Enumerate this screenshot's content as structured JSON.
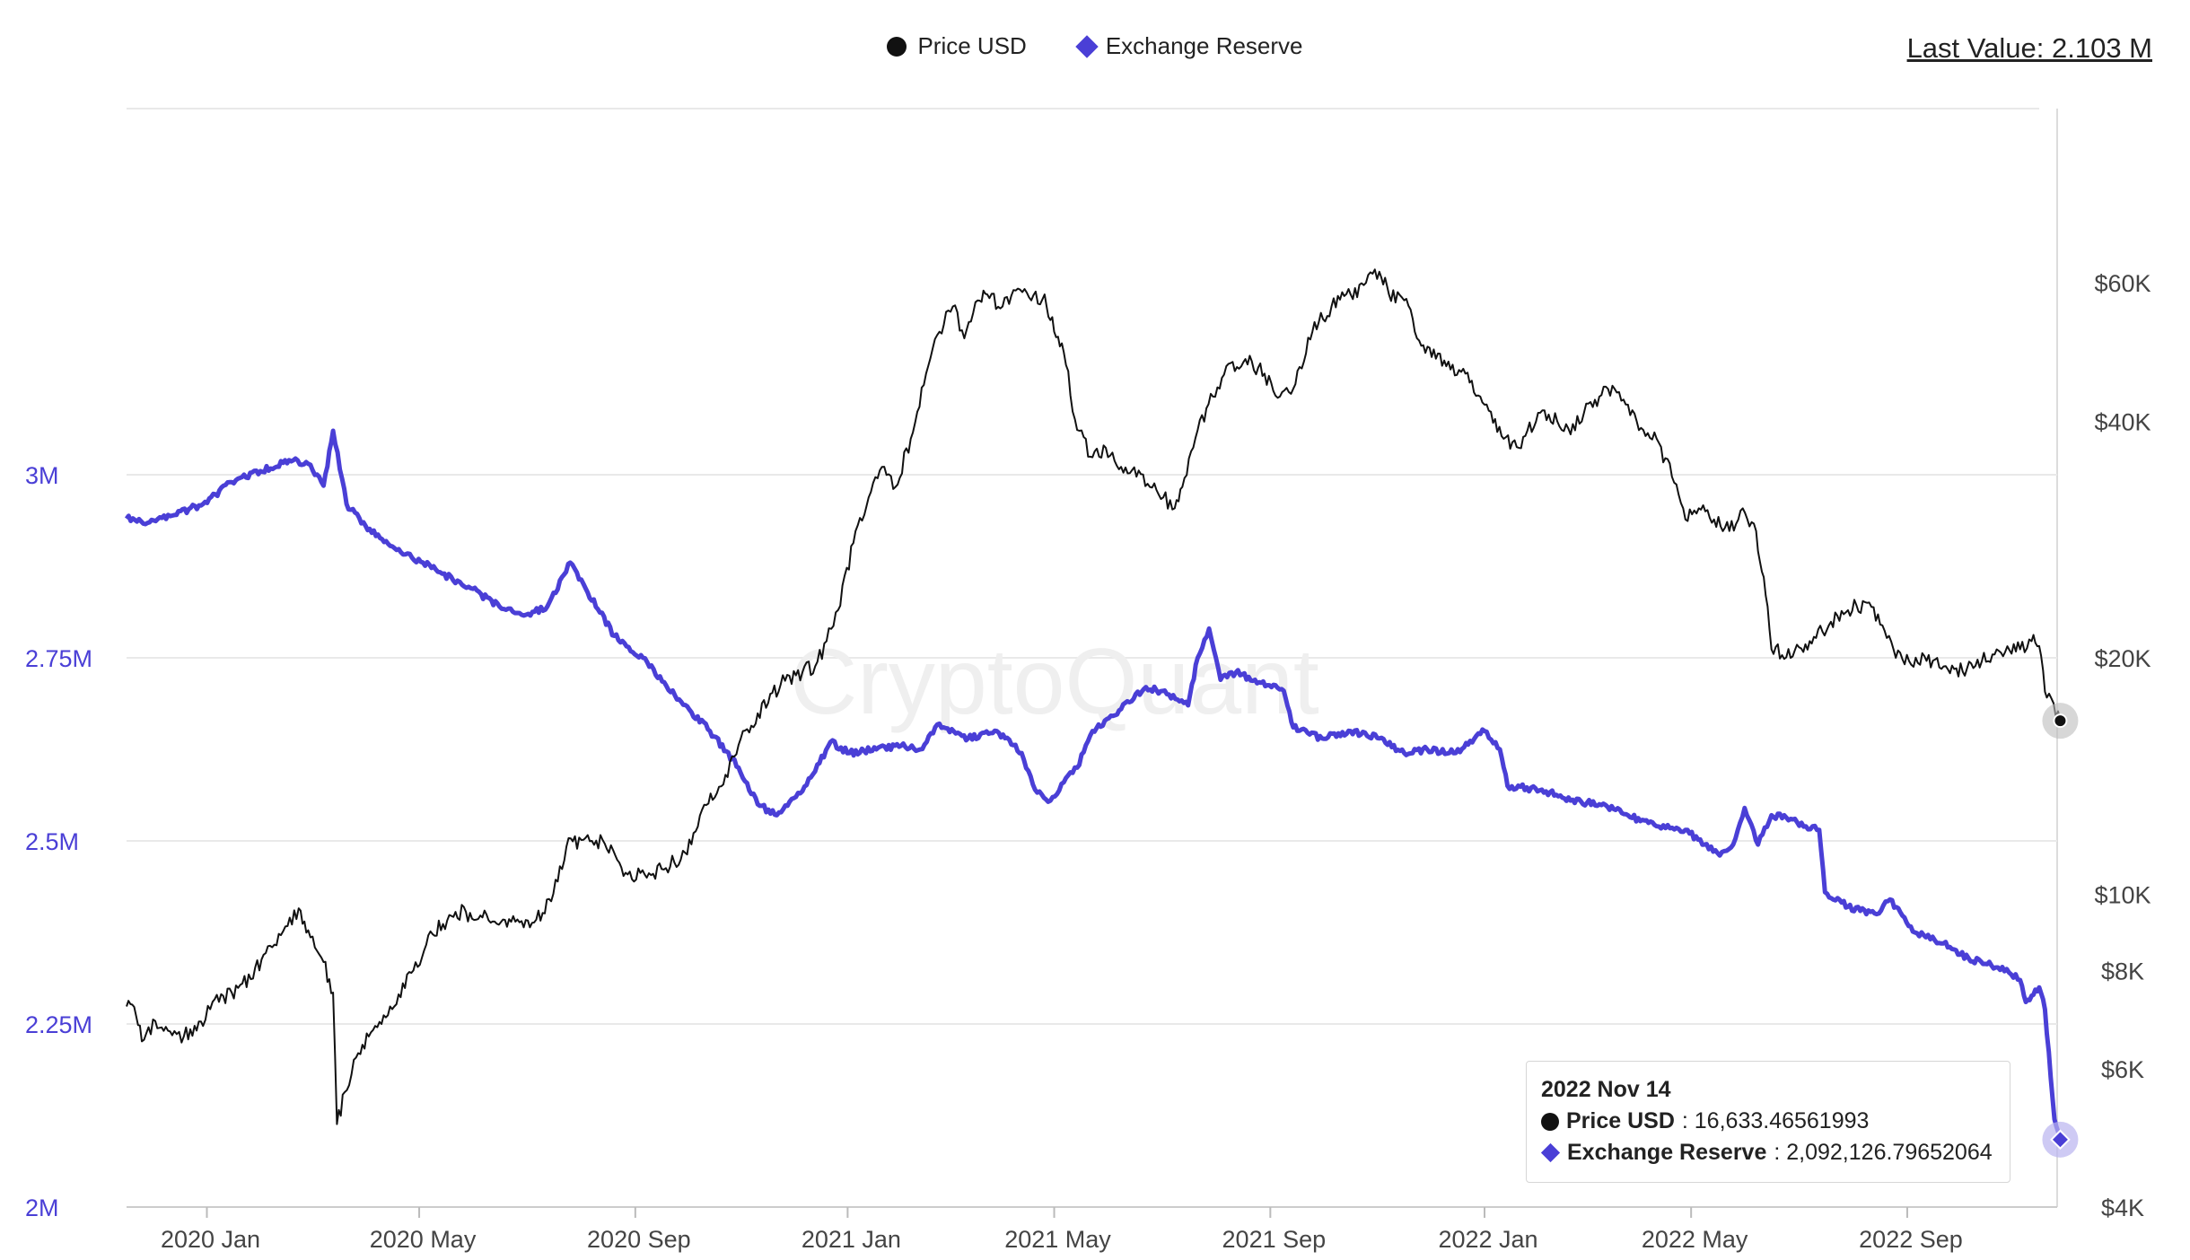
{
  "legend": {
    "items": [
      {
        "label": "Price USD",
        "marker": "circle-icon",
        "color": "#111111"
      },
      {
        "label": "Exchange Reserve",
        "marker": "diamond-icon",
        "color": "#4a3fd6"
      }
    ]
  },
  "last_value": "Last Value: 2.103 M",
  "watermark": "CryptoQuant",
  "tooltip": {
    "date": "2022 Nov 14",
    "price_label": "Price USD",
    "price_value": ": 16,633.46561993",
    "reserve_label": "Exchange Reserve",
    "reserve_value": ": 2,092,126.79652064"
  },
  "chart_data": {
    "type": "line",
    "x_ticks": [
      {
        "label": "2020 Jan",
        "t": 0.042
      },
      {
        "label": "2020 May",
        "t": 0.153
      },
      {
        "label": "2020 Sep",
        "t": 0.266
      },
      {
        "label": "2021 Jan",
        "t": 0.377
      },
      {
        "label": "2021 May",
        "t": 0.485
      },
      {
        "label": "2021 Sep",
        "t": 0.598
      },
      {
        "label": "2022 Jan",
        "t": 0.71
      },
      {
        "label": "2022 May",
        "t": 0.818
      },
      {
        "label": "2022 Sep",
        "t": 0.931
      }
    ],
    "left_axis": {
      "ylim": [
        2000000,
        3500000
      ],
      "color": "#4a3fd6",
      "ticks": [
        {
          "label": "3M",
          "v": 3000000
        },
        {
          "label": "2.75M",
          "v": 2750000
        },
        {
          "label": "2.5M",
          "v": 2500000
        },
        {
          "label": "2.25M",
          "v": 2250000
        },
        {
          "label": "2M",
          "v": 2000000
        }
      ]
    },
    "right_axis": {
      "scale": "log",
      "ylim": [
        4000,
        100000
      ],
      "color": "#444444",
      "ticks": [
        {
          "label": "$60K",
          "v": 60000
        },
        {
          "label": "$40K",
          "v": 40000
        },
        {
          "label": "$20K",
          "v": 20000
        },
        {
          "label": "$10K",
          "v": 10000
        },
        {
          "label": "$8K",
          "v": 8000
        },
        {
          "label": "$6K",
          "v": 6000
        },
        {
          "label": "$4K",
          "v": 4000
        }
      ]
    },
    "series": [
      {
        "name": "Exchange Reserve",
        "axis": "left",
        "color": "#4a3fd6",
        "points": [
          [
            0.0,
            2940000
          ],
          [
            0.012,
            2935000
          ],
          [
            0.025,
            2945000
          ],
          [
            0.04,
            2960000
          ],
          [
            0.055,
            2990000
          ],
          [
            0.07,
            3005000
          ],
          [
            0.085,
            3020000
          ],
          [
            0.095,
            3015000
          ],
          [
            0.103,
            2985000
          ],
          [
            0.108,
            3060000
          ],
          [
            0.115,
            2960000
          ],
          [
            0.125,
            2930000
          ],
          [
            0.14,
            2900000
          ],
          [
            0.155,
            2880000
          ],
          [
            0.165,
            2865000
          ],
          [
            0.18,
            2845000
          ],
          [
            0.195,
            2820000
          ],
          [
            0.21,
            2810000
          ],
          [
            0.22,
            2820000
          ],
          [
            0.232,
            2880000
          ],
          [
            0.24,
            2845000
          ],
          [
            0.255,
            2780000
          ],
          [
            0.27,
            2750000
          ],
          [
            0.29,
            2690000
          ],
          [
            0.305,
            2650000
          ],
          [
            0.32,
            2600000
          ],
          [
            0.33,
            2550000
          ],
          [
            0.34,
            2535000
          ],
          [
            0.35,
            2560000
          ],
          [
            0.36,
            2595000
          ],
          [
            0.368,
            2635000
          ],
          [
            0.378,
            2620000
          ],
          [
            0.392,
            2625000
          ],
          [
            0.405,
            2630000
          ],
          [
            0.415,
            2625000
          ],
          [
            0.425,
            2660000
          ],
          [
            0.44,
            2640000
          ],
          [
            0.455,
            2650000
          ],
          [
            0.468,
            2620000
          ],
          [
            0.475,
            2570000
          ],
          [
            0.483,
            2555000
          ],
          [
            0.49,
            2580000
          ],
          [
            0.497,
            2600000
          ],
          [
            0.505,
            2650000
          ],
          [
            0.52,
            2680000
          ],
          [
            0.533,
            2710000
          ],
          [
            0.545,
            2700000
          ],
          [
            0.555,
            2685000
          ],
          [
            0.56,
            2750000
          ],
          [
            0.566,
            2790000
          ],
          [
            0.572,
            2720000
          ],
          [
            0.58,
            2730000
          ],
          [
            0.59,
            2720000
          ],
          [
            0.605,
            2705000
          ],
          [
            0.61,
            2655000
          ],
          [
            0.625,
            2640000
          ],
          [
            0.64,
            2650000
          ],
          [
            0.655,
            2640000
          ],
          [
            0.668,
            2620000
          ],
          [
            0.68,
            2625000
          ],
          [
            0.695,
            2620000
          ],
          [
            0.71,
            2650000
          ],
          [
            0.718,
            2625000
          ],
          [
            0.722,
            2575000
          ],
          [
            0.74,
            2570000
          ],
          [
            0.755,
            2555000
          ],
          [
            0.77,
            2550000
          ],
          [
            0.785,
            2535000
          ],
          [
            0.8,
            2520000
          ],
          [
            0.815,
            2515000
          ],
          [
            0.825,
            2495000
          ],
          [
            0.833,
            2480000
          ],
          [
            0.84,
            2495000
          ],
          [
            0.846,
            2545000
          ],
          [
            0.853,
            2495000
          ],
          [
            0.86,
            2535000
          ],
          [
            0.87,
            2530000
          ],
          [
            0.878,
            2520000
          ],
          [
            0.885,
            2515000
          ],
          [
            0.888,
            2430000
          ],
          [
            0.9,
            2410000
          ],
          [
            0.915,
            2400000
          ],
          [
            0.922,
            2420000
          ],
          [
            0.935,
            2375000
          ],
          [
            0.95,
            2360000
          ],
          [
            0.963,
            2340000
          ],
          [
            0.975,
            2330000
          ],
          [
            0.983,
            2325000
          ],
          [
            0.99,
            2310000
          ],
          [
            0.993,
            2280000
          ],
          [
            0.997,
            2290000
          ],
          [
            1.0,
            2300000
          ],
          [
            1.003,
            2270000
          ],
          [
            1.008,
            2120000
          ],
          [
            1.011,
            2092126
          ]
        ]
      },
      {
        "name": "Price USD",
        "axis": "right",
        "color": "#111111",
        "points": [
          [
            0.0,
            7200
          ],
          [
            0.005,
            7000
          ],
          [
            0.008,
            6500
          ],
          [
            0.015,
            6900
          ],
          [
            0.025,
            6700
          ],
          [
            0.03,
            6600
          ],
          [
            0.04,
            6800
          ],
          [
            0.045,
            7300
          ],
          [
            0.055,
            7500
          ],
          [
            0.065,
            7800
          ],
          [
            0.075,
            8600
          ],
          [
            0.083,
            9100
          ],
          [
            0.09,
            9600
          ],
          [
            0.095,
            9000
          ],
          [
            0.103,
            8200
          ],
          [
            0.108,
            7500
          ],
          [
            0.11,
            5100
          ],
          [
            0.114,
            5600
          ],
          [
            0.12,
            6200
          ],
          [
            0.13,
            6800
          ],
          [
            0.14,
            7200
          ],
          [
            0.15,
            8000
          ],
          [
            0.16,
            8900
          ],
          [
            0.172,
            9500
          ],
          [
            0.185,
            9400
          ],
          [
            0.2,
            9300
          ],
          [
            0.212,
            9200
          ],
          [
            0.222,
            9800
          ],
          [
            0.23,
            11500
          ],
          [
            0.24,
            11800
          ],
          [
            0.25,
            11600
          ],
          [
            0.262,
            10600
          ],
          [
            0.272,
            10500
          ],
          [
            0.282,
            10800
          ],
          [
            0.292,
            11300
          ],
          [
            0.302,
            13000
          ],
          [
            0.312,
            13800
          ],
          [
            0.32,
            15500
          ],
          [
            0.33,
            17000
          ],
          [
            0.342,
            18500
          ],
          [
            0.35,
            19000
          ],
          [
            0.36,
            19500
          ],
          [
            0.366,
            21000
          ],
          [
            0.372,
            23000
          ],
          [
            0.38,
            28000
          ],
          [
            0.388,
            32000
          ],
          [
            0.395,
            35000
          ],
          [
            0.402,
            33000
          ],
          [
            0.41,
            38000
          ],
          [
            0.418,
            46000
          ],
          [
            0.425,
            52000
          ],
          [
            0.432,
            56000
          ],
          [
            0.438,
            51000
          ],
          [
            0.445,
            57000
          ],
          [
            0.45,
            58000
          ],
          [
            0.458,
            56000
          ],
          [
            0.466,
            59000
          ],
          [
            0.473,
            57000
          ],
          [
            0.48,
            58000
          ],
          [
            0.485,
            52000
          ],
          [
            0.49,
            49000
          ],
          [
            0.497,
            39000
          ],
          [
            0.505,
            36000
          ],
          [
            0.512,
            37000
          ],
          [
            0.52,
            35000
          ],
          [
            0.528,
            34000
          ],
          [
            0.535,
            33000
          ],
          [
            0.542,
            32000
          ],
          [
            0.548,
            31000
          ],
          [
            0.552,
            33000
          ],
          [
            0.56,
            39000
          ],
          [
            0.568,
            43000
          ],
          [
            0.575,
            47000
          ],
          [
            0.585,
            48000
          ],
          [
            0.595,
            46000
          ],
          [
            0.603,
            43000
          ],
          [
            0.61,
            44000
          ],
          [
            0.62,
            52000
          ],
          [
            0.63,
            56000
          ],
          [
            0.64,
            58000
          ],
          [
            0.648,
            60000
          ],
          [
            0.655,
            62000
          ],
          [
            0.66,
            58000
          ],
          [
            0.668,
            57000
          ],
          [
            0.678,
            50000
          ],
          [
            0.69,
            47000
          ],
          [
            0.7,
            46000
          ],
          [
            0.71,
            42000
          ],
          [
            0.72,
            38000
          ],
          [
            0.728,
            37000
          ],
          [
            0.738,
            41000
          ],
          [
            0.748,
            40000
          ],
          [
            0.755,
            38500
          ],
          [
            0.762,
            41000
          ],
          [
            0.77,
            43000
          ],
          [
            0.778,
            44000
          ],
          [
            0.785,
            42000
          ],
          [
            0.793,
            39000
          ],
          [
            0.8,
            38000
          ],
          [
            0.808,
            34000
          ],
          [
            0.815,
            30000
          ],
          [
            0.822,
            31000
          ],
          [
            0.83,
            30000
          ],
          [
            0.838,
            29000
          ],
          [
            0.845,
            31000
          ],
          [
            0.852,
            29000
          ],
          [
            0.857,
            24000
          ],
          [
            0.86,
            20500
          ],
          [
            0.87,
            20000
          ],
          [
            0.88,
            21000
          ],
          [
            0.89,
            22000
          ],
          [
            0.9,
            23000
          ],
          [
            0.91,
            23500
          ],
          [
            0.918,
            22000
          ],
          [
            0.925,
            20000
          ],
          [
            0.932,
            19800
          ],
          [
            0.94,
            20100
          ],
          [
            0.95,
            19500
          ],
          [
            0.96,
            19200
          ],
          [
            0.97,
            19800
          ],
          [
            0.98,
            20300
          ],
          [
            0.99,
            20500
          ],
          [
            0.996,
            21000
          ],
          [
            1.0,
            20700
          ],
          [
            1.004,
            17800
          ],
          [
            1.011,
            16633
          ]
        ]
      }
    ]
  }
}
